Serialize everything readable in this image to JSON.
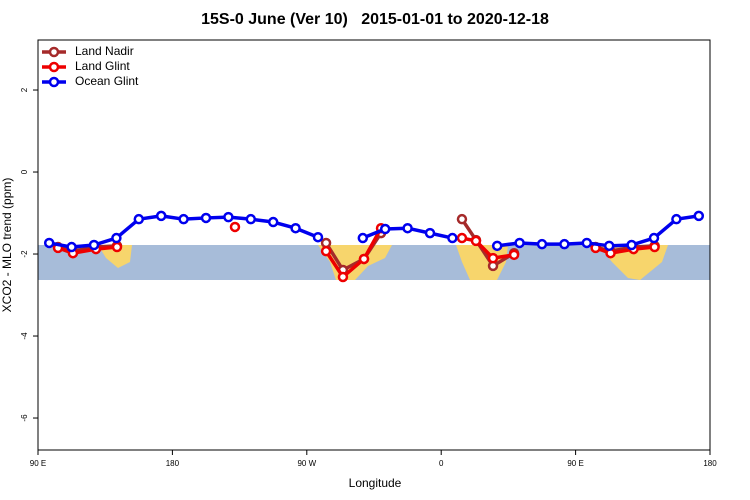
{
  "chart_data": {
    "type": "line",
    "title": "15S-0 June (Ver 10)   2015-01-01 to 2020-12-18",
    "xlabel": "Longitude",
    "ylabel": "XCO2 - MLO trend (ppm)",
    "xlim": [
      90,
      540
    ],
    "ylim": [
      -6.78,
      3.22
    ],
    "xticks": [
      {
        "value": 90,
        "label": "90 E"
      },
      180,
      {
        "value": 270,
        "label": "90 W"
      },
      {
        "value": 360,
        "label": "0"
      },
      {
        "value": 450,
        "label": "90 E"
      },
      {
        "value": 540,
        "label": "180"
      }
    ],
    "yticks": [
      2,
      0,
      -2,
      -4,
      -6
    ],
    "legend": "top-left",
    "series": [
      {
        "name": "Land Nadir",
        "color": "#a52a2a",
        "x": [
          103.4,
          113.4,
          128.8,
          142.9,
          null,
          282.9,
          294.2,
          308.3,
          319.7,
          null,
          373.9,
          383.3,
          394.7,
          408.8,
          null,
          463.4,
          473.4,
          488.8,
          502.9
        ],
        "values": [
          -1.83,
          -1.93,
          -1.83,
          -1.8,
          null,
          -1.73,
          -2.39,
          -2.12,
          -1.49,
          null,
          -1.15,
          -1.66,
          -2.29,
          -1.98,
          null,
          -1.83,
          -1.93,
          -1.83,
          -1.8
        ]
      },
      {
        "name": "Land Glint",
        "color": "#ee0000",
        "x": [
          103.4,
          113.4,
          128.8,
          142.9,
          null,
          221.9,
          null,
          282.9,
          294.2,
          308.3,
          319.7,
          null,
          373.9,
          383.3,
          394.7,
          408.8,
          null,
          463.4,
          473.4,
          488.8,
          502.9
        ],
        "values": [
          -1.85,
          -1.98,
          -1.88,
          -1.83,
          null,
          -1.34,
          null,
          -1.93,
          -2.56,
          -2.12,
          -1.37,
          null,
          -1.61,
          -1.68,
          -2.1,
          -2.02,
          null,
          -1.85,
          -1.98,
          -1.88,
          -1.83
        ]
      },
      {
        "name": "Ocean Glint",
        "color": "#0000ee",
        "x": [
          97.5,
          112.5,
          127.5,
          142.5,
          157.5,
          172.5,
          187.5,
          202.5,
          217.5,
          232.5,
          247.5,
          262.5,
          277.5,
          292.5,
          307.5,
          322.5,
          337.5,
          352.5,
          367.5,
          382.5,
          397.5,
          412.5,
          427.5,
          442.5,
          457.5,
          472.5,
          487.5,
          502.5,
          517.5,
          532.5
        ],
        "values": [
          -1.73,
          -1.83,
          -1.78,
          -1.61,
          -1.15,
          -1.07,
          -1.15,
          -1.12,
          -1.1,
          -1.15,
          -1.22,
          -1.37,
          -1.59,
          null,
          -1.61,
          -1.39,
          -1.37,
          -1.49,
          -1.61,
          null,
          -1.8,
          -1.73,
          -1.76,
          -1.76,
          -1.73,
          -1.8,
          -1.78,
          -1.61,
          -1.15,
          -1.07
        ]
      }
    ]
  }
}
